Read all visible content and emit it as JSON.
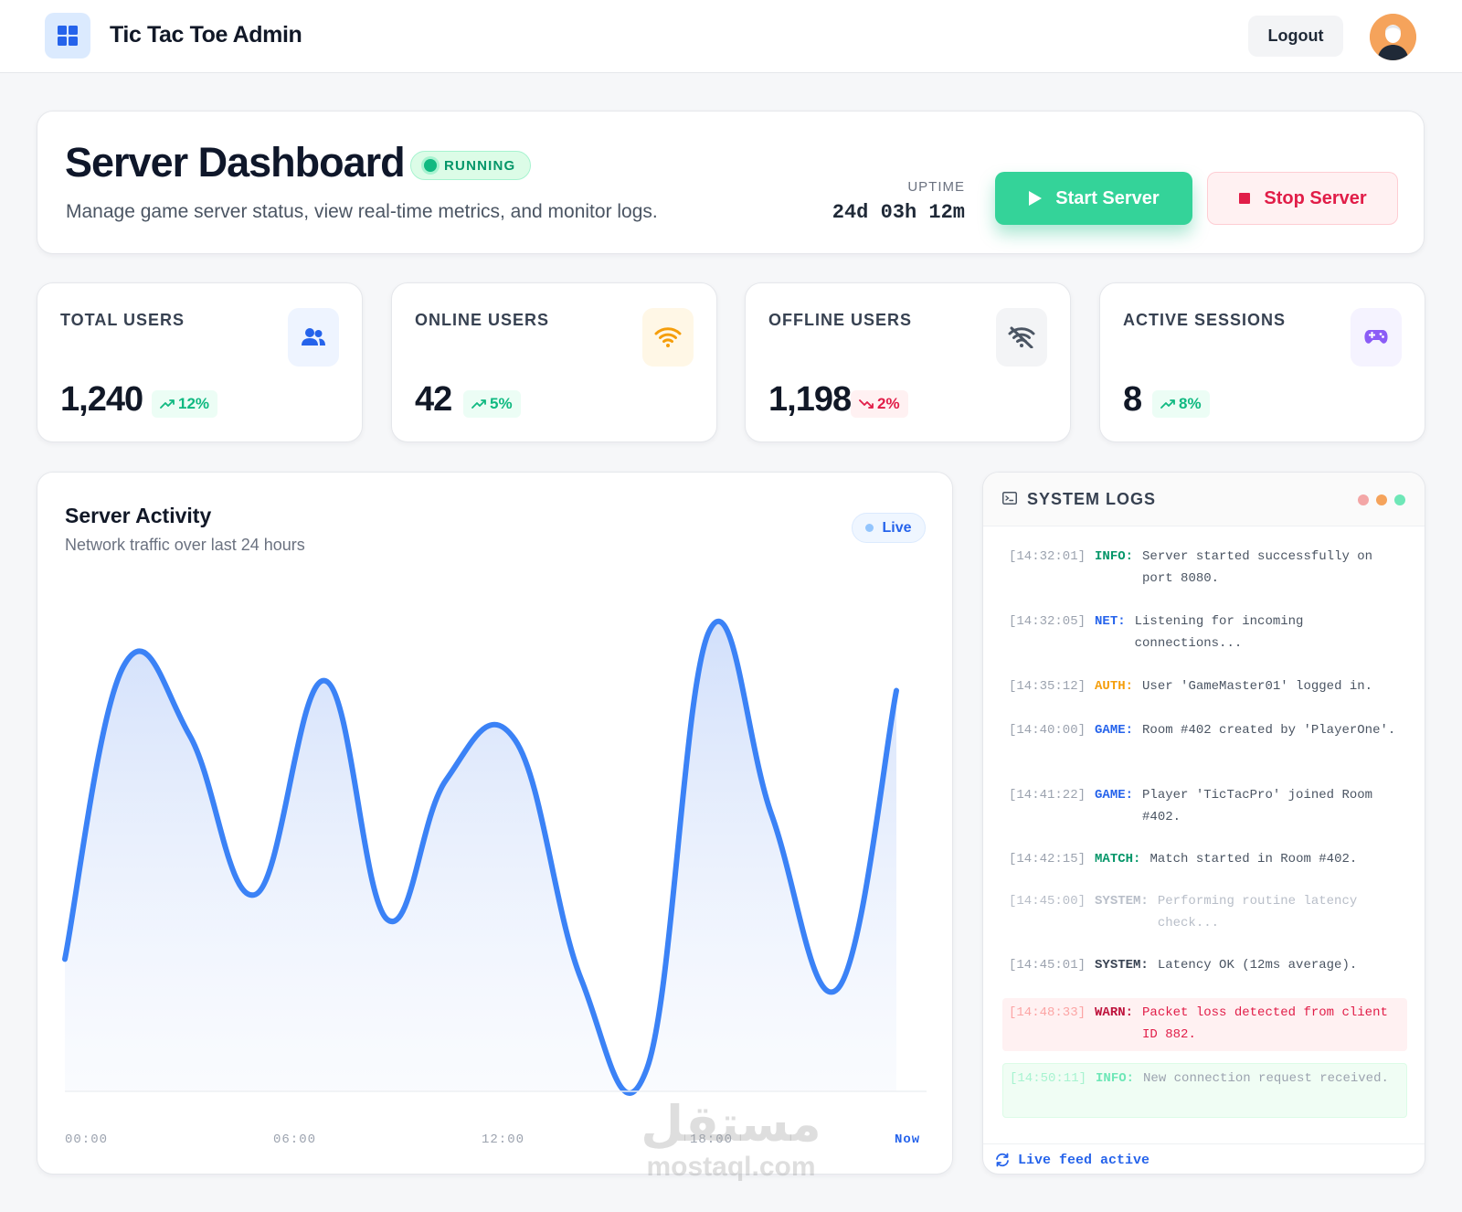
{
  "app": {
    "title": "Tic Tac Toe Admin",
    "logout_label": "Logout"
  },
  "header": {
    "title": "Server Dashboard",
    "status": "RUNNING",
    "subtitle": "Manage game server status, view real-time metrics, and monitor logs.",
    "uptime_label": "UPTIME",
    "uptime_value": "24d 03h 12m",
    "start_label": "Start Server",
    "stop_label": "Stop Server"
  },
  "stats": [
    {
      "label": "TOTAL USERS",
      "value": "1,240",
      "change": "12%",
      "trend": "up",
      "icon": "users-icon"
    },
    {
      "label": "ONLINE USERS",
      "value": "42",
      "change": "5%",
      "trend": "up",
      "icon": "wifi-icon"
    },
    {
      "label": "OFFLINE USERS",
      "value": "1,198",
      "change": "2%",
      "trend": "down",
      "icon": "wifi-off-icon"
    },
    {
      "label": "ACTIVE SESSIONS",
      "value": "8",
      "change": "8%",
      "trend": "up",
      "icon": "gamepad-icon"
    }
  ],
  "activity": {
    "title": "Server Activity",
    "subtitle": "Network traffic over last 24 hours",
    "live_label": "Live"
  },
  "chart_data": {
    "type": "area",
    "title": "Server Activity",
    "xlabel": "",
    "ylabel": "",
    "x_ticks": [
      "00:00",
      "06:00",
      "12:00",
      "18:00",
      "Now"
    ],
    "x": [
      0,
      1.7,
      3.6,
      5.5,
      7.5,
      9.3,
      11,
      13,
      14.9,
      16.8,
      18.6,
      20.4,
      22.3,
      24
    ],
    "values": [
      22,
      81,
      67,
      35,
      78,
      30,
      58,
      66,
      18,
      0,
      88,
      51,
      16,
      76
    ],
    "ylim": [
      0,
      100
    ],
    "grid": false,
    "legend": "none",
    "color": "#3b82f6"
  },
  "logs": {
    "title": "SYSTEM LOGS",
    "footer": "Live feed active",
    "entries": [
      {
        "time": "[14:32:01]",
        "tag": "INFO:",
        "message": "Server started successfully on port 8080.",
        "level": "info"
      },
      {
        "time": "[14:32:05]",
        "tag": "NET:",
        "message": "Listening for incoming connections...",
        "level": "net"
      },
      {
        "time": "[14:35:12]",
        "tag": "AUTH:",
        "message": "User 'GameMaster01' logged in.",
        "level": "auth"
      },
      {
        "time": "[14:40:00]",
        "tag": "GAME:",
        "message": "Room #402 created by 'PlayerOne'.",
        "level": "game"
      },
      {
        "time": "[14:41:22]",
        "tag": "GAME:",
        "message": "Player 'TicTacPro' joined Room #402.",
        "level": "game"
      },
      {
        "time": "[14:42:15]",
        "tag": "MATCH:",
        "message": "Match started in Room #402.",
        "level": "match"
      },
      {
        "time": "[14:45:00]",
        "tag": "SYSTEM:",
        "message": "Performing routine latency check...",
        "level": "system-muted"
      },
      {
        "time": "[14:45:01]",
        "tag": "SYSTEM:",
        "message": "Latency OK (12ms average).",
        "level": "system"
      },
      {
        "time": "[14:48:33]",
        "tag": "WARN:",
        "message": "Packet loss detected from client ID 882.",
        "level": "warn"
      },
      {
        "time": "[14:50:11]",
        "tag": "INFO:",
        "message": "New connection request received.",
        "level": "recent"
      }
    ]
  },
  "colors": {
    "accent": "#2563eb",
    "success": "#34d399",
    "danger": "#e11d48",
    "info_tag": "#059669",
    "net_tag": "#2563eb",
    "auth_tag": "#f59e0b",
    "game_tag": "#2563eb",
    "match_tag": "#059669",
    "system_tag": "#374151"
  },
  "watermark": {
    "arabic": "مستقل",
    "latin": "mostaql.com"
  }
}
